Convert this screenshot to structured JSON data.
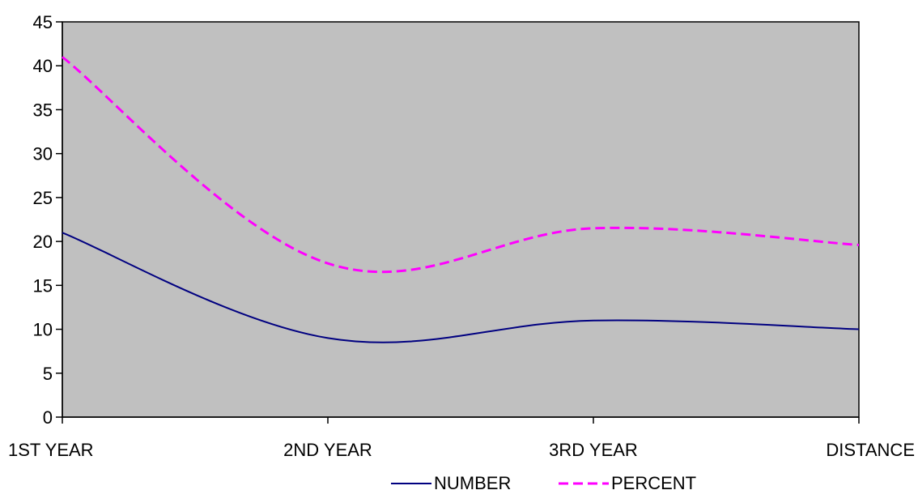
{
  "chart_data": {
    "type": "line",
    "smooth": true,
    "categories": [
      "1ST YEAR",
      "2ND YEAR",
      "3RD YEAR",
      "DISTANCE"
    ],
    "series": [
      {
        "name": "NUMBER",
        "values": [
          21,
          9,
          11,
          10
        ],
        "color": "#000080",
        "dash": "solid"
      },
      {
        "name": "PERCENT",
        "values": [
          41,
          17.5,
          21.5,
          19.6
        ],
        "color": "#ff00ff",
        "dash": "dashed"
      }
    ],
    "ylim": [
      0,
      45
    ],
    "ytick_step": 5,
    "yticks": [
      "0",
      "5",
      "10",
      "15",
      "20",
      "25",
      "30",
      "35",
      "40",
      "45"
    ],
    "grid": false,
    "plot_background": "#c0c0c0",
    "legend_position": "bottom-center"
  }
}
